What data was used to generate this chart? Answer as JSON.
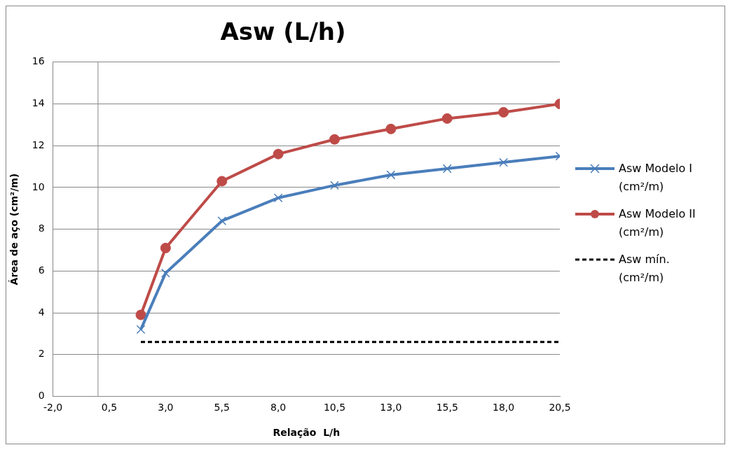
{
  "chart_data": {
    "type": "line",
    "title": "Asw (L/h)",
    "xlabel": "Relação  L/h",
    "ylabel": "Área de aço (cm²/m)",
    "xlim": [
      -2,
      20.5
    ],
    "xticks": [
      {
        "value": -2,
        "label": "-2,0"
      },
      {
        "value": 0.5,
        "label": "0,5"
      },
      {
        "value": 3,
        "label": "3,0"
      },
      {
        "value": 5.5,
        "label": "5,5"
      },
      {
        "value": 8,
        "label": "8,0"
      },
      {
        "value": 10.5,
        "label": "10,5"
      },
      {
        "value": 13,
        "label": "13,0"
      },
      {
        "value": 15.5,
        "label": "15,5"
      },
      {
        "value": 18,
        "label": "18,0"
      },
      {
        "value": 20.5,
        "label": "20,5"
      }
    ],
    "ylim": [
      0,
      16
    ],
    "yticks": [
      0,
      2,
      4,
      6,
      8,
      10,
      12,
      14,
      16
    ],
    "grid": "y",
    "legend": "right",
    "ref_lines": [
      {
        "axis": "x",
        "value": 0,
        "color": "#888888"
      }
    ],
    "series": [
      {
        "name": "Asw Modelo I (cm²/m)",
        "color": "#4a7ebb",
        "marker": "cross",
        "line_style": "solid",
        "x": [
          1.9,
          3,
          5.5,
          8,
          10.5,
          13,
          15.5,
          18,
          20.5
        ],
        "values": [
          3.2,
          5.9,
          8.4,
          9.5,
          10.1,
          10.6,
          10.9,
          11.2,
          11.5
        ]
      },
      {
        "name": "Asw Modelo II (cm²/m)",
        "color": "#be4b48",
        "marker": "circle",
        "line_style": "solid",
        "x": [
          1.9,
          3,
          5.5,
          8,
          10.5,
          13,
          15.5,
          18,
          20.5
        ],
        "values": [
          3.9,
          7.1,
          10.3,
          11.6,
          12.3,
          12.8,
          13.3,
          13.6,
          14.0
        ]
      },
      {
        "name": "Asw mín. (cm²/m)",
        "color": "#000000",
        "marker": "none",
        "line_style": "dashed",
        "x": [
          1.9,
          20.5
        ],
        "values": [
          2.6,
          2.6
        ]
      }
    ]
  }
}
